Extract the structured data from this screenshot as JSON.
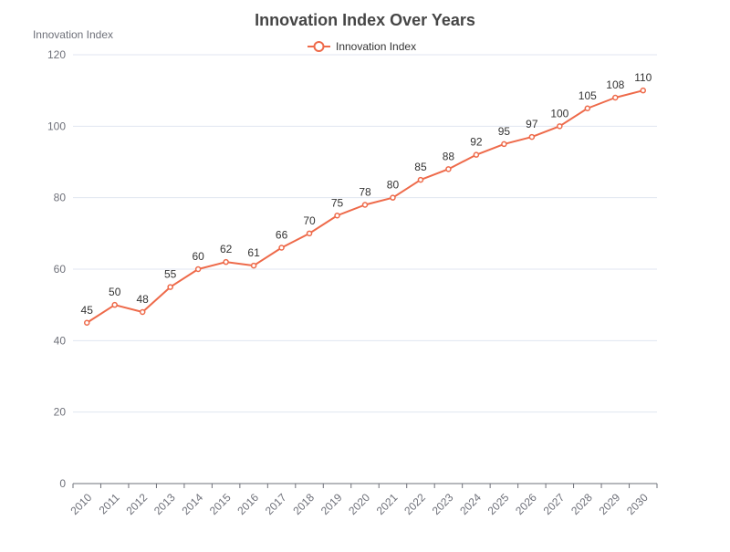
{
  "chart_data": {
    "type": "line",
    "title": "Innovation Index Over Years",
    "ylabel": "Innovation Index",
    "xlabel": "",
    "categories": [
      "2010",
      "2011",
      "2012",
      "2013",
      "2014",
      "2015",
      "2016",
      "2017",
      "2018",
      "2019",
      "2020",
      "2021",
      "2022",
      "2023",
      "2024",
      "2025",
      "2026",
      "2027",
      "2028",
      "2029",
      "2030"
    ],
    "series": [
      {
        "name": "Innovation Index",
        "values": [
          45,
          50,
          48,
          55,
          60,
          62,
          61,
          66,
          70,
          75,
          78,
          80,
          85,
          88,
          92,
          95,
          97,
          100,
          105,
          108,
          110
        ]
      }
    ],
    "ylim": [
      0,
      120
    ],
    "yticks": [
      0,
      20,
      40,
      60,
      80,
      100,
      120
    ],
    "grid": true,
    "legend_position": "top-center",
    "colors": {
      "series": "#ee6a4a",
      "grid": "#e0e6f1",
      "axis": "#6e7079"
    }
  }
}
